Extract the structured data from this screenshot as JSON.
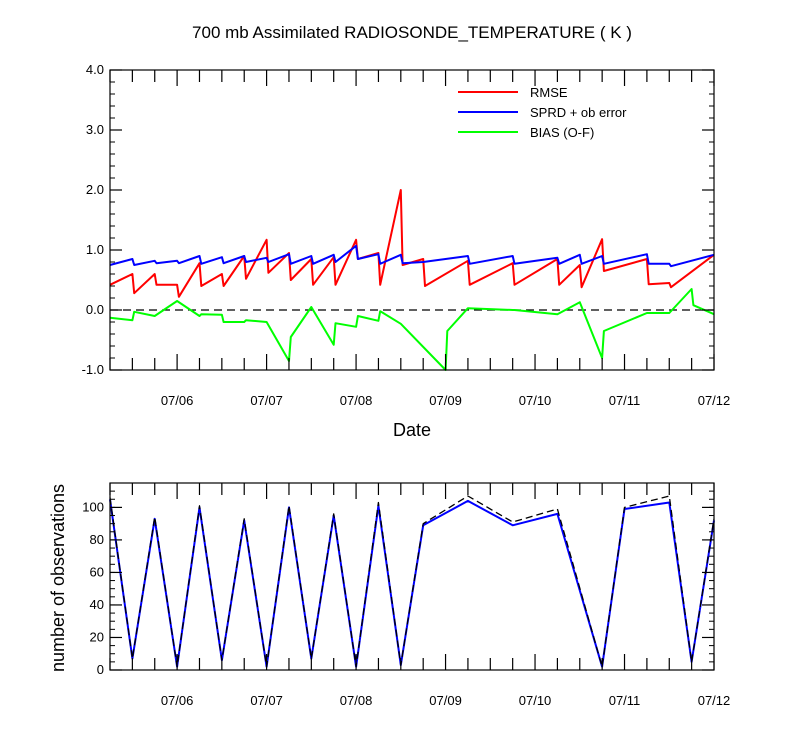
{
  "chart_data": [
    {
      "type": "line",
      "title": "700 mb Assimilated RADIOSONDE_TEMPERATURE ( K )",
      "xlabel": "Date",
      "ylabel": "",
      "x_ticks": [
        "07/06",
        "07/07",
        "07/08",
        "07/09",
        "07/10",
        "07/11",
        "07/12"
      ],
      "x_tick_positions": [
        0.75,
        1.75,
        2.75,
        3.75,
        4.75,
        5.75,
        6.75
      ],
      "xlim": [
        0,
        6.75
      ],
      "ylim": [
        -1.0,
        4.0
      ],
      "y_ticks": [
        "-1.0",
        "0.0",
        "1.0",
        "2.0",
        "3.0",
        "4.0"
      ],
      "y_tick_values": [
        -1,
        0,
        1,
        2,
        3,
        4
      ],
      "reference_line": 0,
      "legend_position": "top-right",
      "series": [
        {
          "name": "RMSE",
          "color": "#ff0000",
          "points": [
            [
              0,
              0.42
            ],
            [
              0.25,
              0.6
            ],
            [
              0.27,
              0.28
            ],
            [
              0.5,
              0.6
            ],
            [
              0.52,
              0.42
            ],
            [
              0.75,
              0.42
            ],
            [
              0.77,
              0.22
            ],
            [
              1.0,
              0.78
            ],
            [
              1.02,
              0.4
            ],
            [
              1.25,
              0.6
            ],
            [
              1.27,
              0.4
            ],
            [
              1.5,
              0.9
            ],
            [
              1.52,
              0.52
            ],
            [
              1.75,
              1.17
            ],
            [
              1.77,
              0.62
            ],
            [
              2.0,
              0.95
            ],
            [
              2.02,
              0.5
            ],
            [
              2.25,
              0.85
            ],
            [
              2.27,
              0.42
            ],
            [
              2.5,
              0.88
            ],
            [
              2.52,
              0.42
            ],
            [
              2.75,
              1.17
            ],
            [
              2.77,
              0.85
            ],
            [
              3.0,
              0.95
            ],
            [
              3.02,
              0.42
            ],
            [
              3.25,
              2.0
            ],
            [
              3.27,
              0.75
            ],
            [
              3.5,
              0.85
            ],
            [
              3.52,
              0.4
            ],
            [
              4.0,
              0.82
            ],
            [
              4.02,
              0.42
            ],
            [
              4.5,
              0.78
            ],
            [
              4.52,
              0.42
            ],
            [
              5.0,
              0.85
            ],
            [
              5.02,
              0.42
            ],
            [
              5.25,
              0.75
            ],
            [
              5.27,
              0.38
            ],
            [
              5.5,
              1.18
            ],
            [
              5.52,
              0.65
            ],
            [
              6.0,
              0.85
            ],
            [
              6.02,
              0.43
            ],
            [
              6.25,
              0.45
            ],
            [
              6.27,
              0.38
            ],
            [
              6.75,
              0.92
            ]
          ]
        },
        {
          "name": "SPRD + ob error",
          "color": "#0000ff",
          "points": [
            [
              0,
              0.75
            ],
            [
              0.25,
              0.85
            ],
            [
              0.27,
              0.75
            ],
            [
              0.5,
              0.82
            ],
            [
              0.52,
              0.78
            ],
            [
              0.75,
              0.82
            ],
            [
              0.77,
              0.78
            ],
            [
              1.0,
              0.9
            ],
            [
              1.02,
              0.77
            ],
            [
              1.25,
              0.88
            ],
            [
              1.27,
              0.78
            ],
            [
              1.5,
              0.9
            ],
            [
              1.52,
              0.8
            ],
            [
              1.75,
              0.87
            ],
            [
              1.77,
              0.8
            ],
            [
              2.0,
              0.93
            ],
            [
              2.02,
              0.77
            ],
            [
              2.25,
              0.9
            ],
            [
              2.27,
              0.77
            ],
            [
              2.5,
              0.92
            ],
            [
              2.52,
              0.8
            ],
            [
              2.75,
              1.07
            ],
            [
              2.77,
              0.85
            ],
            [
              3.0,
              0.93
            ],
            [
              3.02,
              0.77
            ],
            [
              3.25,
              0.92
            ],
            [
              3.27,
              0.78
            ],
            [
              3.5,
              0.8
            ],
            [
              4.0,
              0.9
            ],
            [
              4.02,
              0.77
            ],
            [
              4.5,
              0.9
            ],
            [
              4.52,
              0.77
            ],
            [
              5.0,
              0.87
            ],
            [
              5.02,
              0.77
            ],
            [
              5.25,
              0.92
            ],
            [
              5.27,
              0.77
            ],
            [
              5.5,
              0.9
            ],
            [
              5.52,
              0.77
            ],
            [
              6.0,
              0.93
            ],
            [
              6.02,
              0.77
            ],
            [
              6.25,
              0.77
            ],
            [
              6.27,
              0.73
            ],
            [
              6.75,
              0.92
            ]
          ]
        },
        {
          "name": "BIAS (O-F)",
          "color": "#00ff00",
          "points": [
            [
              0,
              -0.13
            ],
            [
              0.25,
              -0.17
            ],
            [
              0.27,
              -0.03
            ],
            [
              0.5,
              -0.1
            ],
            [
              0.75,
              0.15
            ],
            [
              1.0,
              -0.1
            ],
            [
              1.02,
              -0.07
            ],
            [
              1.25,
              -0.08
            ],
            [
              1.27,
              -0.2
            ],
            [
              1.5,
              -0.2
            ],
            [
              1.52,
              -0.17
            ],
            [
              1.75,
              -0.2
            ],
            [
              2.0,
              -0.85
            ],
            [
              2.02,
              -0.45
            ],
            [
              2.25,
              0.05
            ],
            [
              2.5,
              -0.58
            ],
            [
              2.52,
              -0.22
            ],
            [
              2.75,
              -0.28
            ],
            [
              2.77,
              -0.1
            ],
            [
              3.0,
              -0.18
            ],
            [
              3.02,
              -0.02
            ],
            [
              3.25,
              -0.23
            ],
            [
              3.75,
              -1.0
            ],
            [
              3.77,
              -0.35
            ],
            [
              4.0,
              0.03
            ],
            [
              4.5,
              0.0
            ],
            [
              4.52,
              0.0
            ],
            [
              5.0,
              -0.07
            ],
            [
              5.25,
              0.13
            ],
            [
              5.5,
              -0.8
            ],
            [
              5.52,
              -0.35
            ],
            [
              6.0,
              -0.05
            ],
            [
              6.25,
              -0.05
            ],
            [
              6.5,
              0.35
            ],
            [
              6.52,
              0.08
            ],
            [
              6.75,
              -0.07
            ]
          ]
        }
      ]
    },
    {
      "type": "line",
      "title": "",
      "xlabel": "",
      "ylabel": "number of observations",
      "x_ticks": [
        "07/06",
        "07/07",
        "07/08",
        "07/09",
        "07/10",
        "07/11",
        "07/12"
      ],
      "x_tick_positions": [
        0.75,
        1.75,
        2.75,
        3.75,
        4.75,
        5.75,
        6.75
      ],
      "xlim": [
        0,
        6.75
      ],
      "ylim": [
        0,
        115
      ],
      "y_ticks": [
        "0",
        "20",
        "40",
        "60",
        "80",
        "100"
      ],
      "y_tick_values": [
        0,
        20,
        40,
        60,
        80,
        100
      ],
      "series": [
        {
          "color": "#0000ff",
          "line_style": "solid",
          "points": [
            [
              0,
              105
            ],
            [
              0.25,
              7
            ],
            [
              0.5,
              93
            ],
            [
              0.75,
              2
            ],
            [
              1.0,
              100
            ],
            [
              1.25,
              6
            ],
            [
              1.5,
              92
            ],
            [
              1.75,
              2
            ],
            [
              2.0,
              100
            ],
            [
              2.25,
              7
            ],
            [
              2.5,
              95
            ],
            [
              2.75,
              2
            ],
            [
              3.0,
              101
            ],
            [
              3.25,
              3
            ],
            [
              3.5,
              89
            ],
            [
              4.0,
              104
            ],
            [
              4.5,
              89
            ],
            [
              5.0,
              96
            ],
            [
              5.5,
              2
            ],
            [
              5.75,
              99
            ],
            [
              6.25,
              103
            ],
            [
              6.5,
              5
            ],
            [
              6.75,
              92
            ]
          ]
        },
        {
          "color": "#000000",
          "line_style": "dashed",
          "points": [
            [
              0,
              106
            ],
            [
              0.25,
              7
            ],
            [
              0.5,
              94
            ],
            [
              0.75,
              2
            ],
            [
              1.0,
              101
            ],
            [
              1.25,
              6
            ],
            [
              1.5,
              93
            ],
            [
              1.75,
              2
            ],
            [
              2.0,
              101
            ],
            [
              2.25,
              7
            ],
            [
              2.5,
              96
            ],
            [
              2.75,
              2
            ],
            [
              3.0,
              103
            ],
            [
              3.25,
              3
            ],
            [
              3.5,
              90
            ],
            [
              4.0,
              107
            ],
            [
              4.5,
              91
            ],
            [
              5.0,
              99
            ],
            [
              5.5,
              2
            ],
            [
              5.75,
              100
            ],
            [
              6.25,
              107
            ],
            [
              6.5,
              5
            ],
            [
              6.75,
              93
            ]
          ]
        }
      ]
    }
  ]
}
